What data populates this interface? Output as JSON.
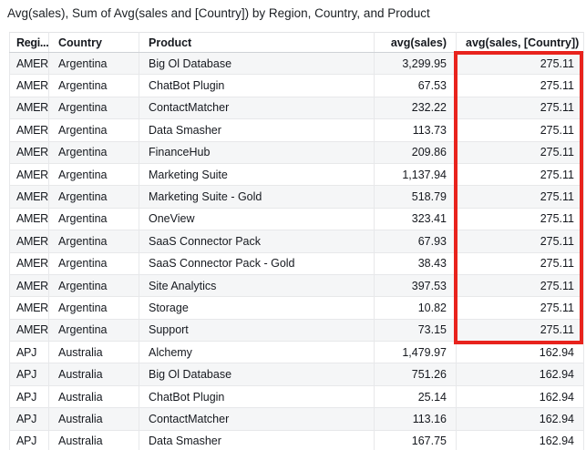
{
  "title": "Avg(sales), Sum of Avg(sales and [Country]) by Region, Country, and Product",
  "table": {
    "columns": [
      {
        "id": "region",
        "label": "Regi...",
        "align": "left"
      },
      {
        "id": "country",
        "label": "Country",
        "align": "left"
      },
      {
        "id": "product",
        "label": "Product",
        "align": "left"
      },
      {
        "id": "avg-sales",
        "label": "avg(sales)",
        "align": "right"
      },
      {
        "id": "avg-sales-country",
        "label": "avg(sales, [Country])",
        "align": "right"
      }
    ],
    "rows": [
      [
        "AMER",
        "Argentina",
        "Big Ol Database",
        "3,299.95",
        "275.11"
      ],
      [
        "AMER",
        "Argentina",
        "ChatBot Plugin",
        "67.53",
        "275.11"
      ],
      [
        "AMER",
        "Argentina",
        "ContactMatcher",
        "232.22",
        "275.11"
      ],
      [
        "AMER",
        "Argentina",
        "Data Smasher",
        "113.73",
        "275.11"
      ],
      [
        "AMER",
        "Argentina",
        "FinanceHub",
        "209.86",
        "275.11"
      ],
      [
        "AMER",
        "Argentina",
        "Marketing Suite",
        "1,137.94",
        "275.11"
      ],
      [
        "AMER",
        "Argentina",
        "Marketing Suite - Gold",
        "518.79",
        "275.11"
      ],
      [
        "AMER",
        "Argentina",
        "OneView",
        "323.41",
        "275.11"
      ],
      [
        "AMER",
        "Argentina",
        "SaaS Connector Pack",
        "67.93",
        "275.11"
      ],
      [
        "AMER",
        "Argentina",
        "SaaS Connector Pack - Gold",
        "38.43",
        "275.11"
      ],
      [
        "AMER",
        "Argentina",
        "Site Analytics",
        "397.53",
        "275.11"
      ],
      [
        "AMER",
        "Argentina",
        "Storage",
        "10.82",
        "275.11"
      ],
      [
        "AMER",
        "Argentina",
        "Support",
        "73.15",
        "275.11"
      ],
      [
        "APJ",
        "Australia",
        "Alchemy",
        "1,479.97",
        "162.94"
      ],
      [
        "APJ",
        "Australia",
        "Big Ol Database",
        "751.26",
        "162.94"
      ],
      [
        "APJ",
        "Australia",
        "ChatBot Plugin",
        "25.14",
        "162.94"
      ],
      [
        "APJ",
        "Australia",
        "ContactMatcher",
        "113.16",
        "162.94"
      ],
      [
        "APJ",
        "Australia",
        "Data Smasher",
        "167.75",
        "162.94"
      ]
    ]
  },
  "annotation": {
    "color": "#e8231d",
    "highlighted_column": "avg(sales, [Country])",
    "highlighted_value": "275.11"
  }
}
